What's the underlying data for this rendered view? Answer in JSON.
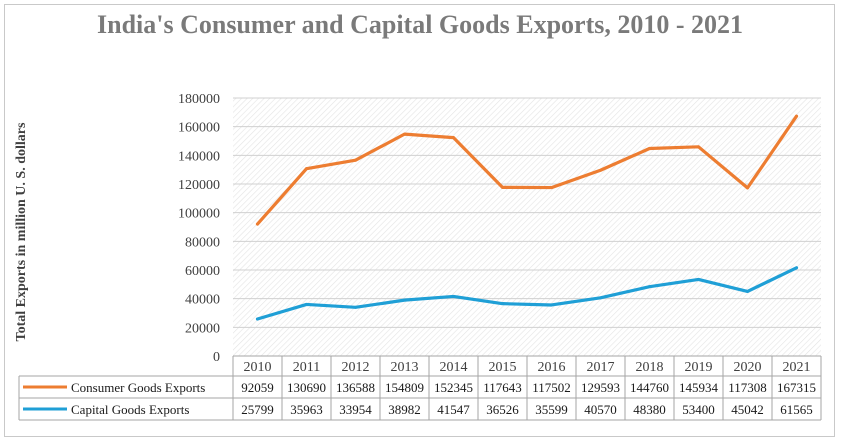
{
  "chart_data": {
    "type": "line",
    "title": "India's Consumer and Capital Goods Exports, 2010 - 2021",
    "ylabel": "Total Exports in million U. S. dollars",
    "ylim": [
      0,
      180000
    ],
    "yticks": [
      "0",
      "20000",
      "40000",
      "60000",
      "80000",
      "100000",
      "120000",
      "140000",
      "160000",
      "180000"
    ],
    "categories": [
      "2010",
      "2011",
      "2012",
      "2013",
      "2014",
      "2015",
      "2016",
      "2017",
      "2018",
      "2019",
      "2020",
      "2021"
    ],
    "series": [
      {
        "name": "Consumer Goods Exports",
        "color": "#ed7d31",
        "values": [
          92059,
          130690,
          136588,
          154809,
          152345,
          117643,
          117502,
          129593,
          144760,
          145934,
          117308,
          167315
        ]
      },
      {
        "name": "Capital Goods Exports",
        "color": "#1f9fd6",
        "values": [
          25799,
          35963,
          33954,
          38982,
          41547,
          36526,
          35599,
          40570,
          48380,
          53400,
          45042,
          61565
        ]
      }
    ],
    "grid": true,
    "legend": "data-table"
  }
}
